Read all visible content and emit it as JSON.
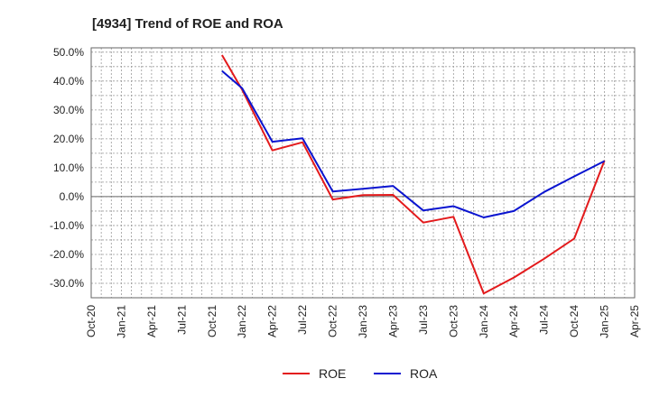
{
  "chart_data": {
    "type": "line",
    "title": "[4934]  Trend of ROE and ROA",
    "xlabel": "",
    "ylabel": "",
    "x_ticks": [
      "Oct-20",
      "Jan-21",
      "Apr-21",
      "Jul-21",
      "Oct-21",
      "Jan-22",
      "Apr-22",
      "Jul-22",
      "Oct-22",
      "Jan-23",
      "Apr-23",
      "Jul-23",
      "Oct-23",
      "Jan-24",
      "Apr-24",
      "Jul-24",
      "Oct-24",
      "Jan-25",
      "Apr-25"
    ],
    "y_ticks": [
      "50.0%",
      "40.0%",
      "30.0%",
      "20.0%",
      "10.0%",
      "0.0%",
      "-10.0%",
      "-20.0%",
      "-30.0%"
    ],
    "y_tick_values": [
      50,
      40,
      30,
      20,
      10,
      0,
      -10,
      -20,
      -30
    ],
    "ylim": [
      -35,
      51.5
    ],
    "grid": true,
    "legend_position": "bottom-center",
    "series": [
      {
        "name": "ROE",
        "color": "#e31a1c",
        "points": [
          {
            "x": "Nov-21",
            "y": 49.0
          },
          {
            "x": "Jan-22",
            "y": 37.0
          },
          {
            "x": "Apr-22",
            "y": 16.0
          },
          {
            "x": "Jul-22",
            "y": 18.8
          },
          {
            "x": "Oct-22",
            "y": -1.0
          },
          {
            "x": "Jan-23",
            "y": 0.5
          },
          {
            "x": "Apr-23",
            "y": 0.6
          },
          {
            "x": "Jul-23",
            "y": -9.0
          },
          {
            "x": "Oct-23",
            "y": -7.0
          },
          {
            "x": "Jan-24",
            "y": -33.5
          },
          {
            "x": "Apr-24",
            "y": -28.0
          },
          {
            "x": "Jul-24",
            "y": -21.5
          },
          {
            "x": "Oct-24",
            "y": -14.5
          },
          {
            "x": "Jan-25",
            "y": 12.5
          }
        ]
      },
      {
        "name": "ROA",
        "color": "#0a14d0",
        "points": [
          {
            "x": "Nov-21",
            "y": 43.5
          },
          {
            "x": "Jan-22",
            "y": 37.5
          },
          {
            "x": "Apr-22",
            "y": 19.0
          },
          {
            "x": "Jul-22",
            "y": 20.2
          },
          {
            "x": "Oct-22",
            "y": 1.8
          },
          {
            "x": "Jan-23",
            "y": 2.7
          },
          {
            "x": "Apr-23",
            "y": 3.7
          },
          {
            "x": "Jul-23",
            "y": -4.8
          },
          {
            "x": "Oct-23",
            "y": -3.3
          },
          {
            "x": "Jan-24",
            "y": -7.2
          },
          {
            "x": "Apr-24",
            "y": -5.0
          },
          {
            "x": "Jul-24",
            "y": 1.6
          },
          {
            "x": "Oct-24",
            "y": 7.0
          },
          {
            "x": "Jan-25",
            "y": 12.3
          }
        ]
      }
    ]
  }
}
